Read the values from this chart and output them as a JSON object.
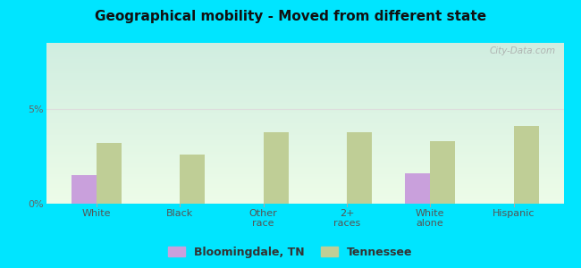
{
  "title": "Geographical mobility - Moved from different state",
  "categories": [
    "White",
    "Black",
    "Other\nrace",
    "2+\nraces",
    "White\nalone",
    "Hispanic"
  ],
  "bloomingdale_values": [
    1.5,
    0.0,
    0.0,
    0.0,
    1.6,
    0.0
  ],
  "tennessee_values": [
    3.2,
    2.6,
    3.8,
    3.8,
    3.3,
    4.1
  ],
  "bloomingdale_color": "#c9a0dc",
  "tennessee_color": "#bfce96",
  "ylim": [
    0,
    8.5
  ],
  "bg_top": "#d0ede0",
  "bg_bottom": "#edfce8",
  "outer_bg": "#00e5ff",
  "bar_width": 0.3,
  "title_fontsize": 11,
  "label_fontsize": 8,
  "legend_fontsize": 9,
  "watermark": "City-Data.com"
}
